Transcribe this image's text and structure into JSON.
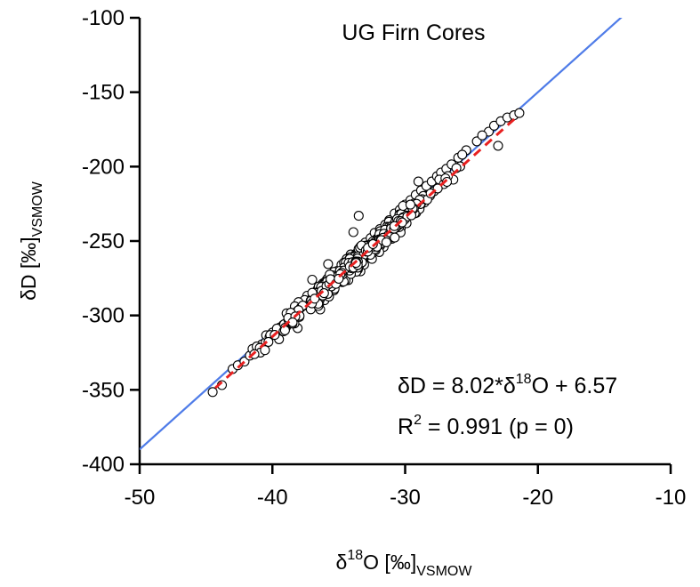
{
  "chart_data": {
    "type": "scatter",
    "title": "UG Firn Cores",
    "xlabel": {
      "delta": "δ",
      "sup": "18",
      "main": "O [‰]",
      "sub": "VSMOW"
    },
    "ylabel": {
      "main": "δD [‰]",
      "sub": "VSMOW"
    },
    "xlim": [
      -50,
      -10
    ],
    "ylim": [
      -400,
      -100
    ],
    "xticks": [
      -50,
      -40,
      -30,
      -20,
      -10
    ],
    "yticks": [
      -100,
      -150,
      -200,
      -250,
      -300,
      -350,
      -400
    ],
    "grid": false,
    "reference_line": {
      "slope": 8,
      "intercept": 10,
      "color": "#4f7ce8"
    },
    "regression": {
      "slope": 8.02,
      "intercept": 6.57,
      "color": "#e82020",
      "style": "dashed",
      "x_range": [
        -44.3,
        -21.6
      ]
    },
    "annotations": {
      "equation": {
        "lhs": "δD = 8.02*δ",
        "sup": "18",
        "rhs": "O + 6.57"
      },
      "r2": {
        "lhs": "R",
        "sup": "2",
        "rhs": " = 0.991 (p = 0)"
      }
    },
    "series": [
      {
        "marker": "open-circle",
        "x_range": [
          -44.5,
          -21.4
        ],
        "n_points": 460,
        "points": [
          [
            -44.5,
            -351.5
          ],
          [
            -43.8,
            -346.8
          ],
          [
            -43.0,
            -336.0
          ],
          [
            -42.6,
            -333.5
          ],
          [
            -42.1,
            -331.0
          ],
          [
            -41.7,
            -327.0
          ],
          [
            -41.5,
            -322.5
          ],
          [
            -41.1,
            -322.0
          ],
          [
            -40.8,
            -319.5
          ],
          [
            -40.5,
            -318.0
          ],
          [
            -40.3,
            -314.5
          ],
          [
            -40.0,
            -311.5
          ],
          [
            -39.6,
            -309.5
          ],
          [
            -39.2,
            -306.5
          ],
          [
            -38.8,
            -301.5
          ],
          [
            -38.4,
            -300.5
          ],
          [
            -38.0,
            -295.0
          ],
          [
            -37.6,
            -291.5
          ],
          [
            -37.3,
            -289.0
          ],
          [
            -37.0,
            -286.5
          ],
          [
            -36.6,
            -282.5
          ],
          [
            -36.2,
            -278.5
          ],
          [
            -35.9,
            -276.0
          ],
          [
            -35.5,
            -273.5
          ],
          [
            -35.1,
            -270.0
          ],
          [
            -34.8,
            -266.0
          ],
          [
            -34.4,
            -262.0
          ],
          [
            -34.1,
            -259.0
          ],
          [
            -33.7,
            -258.5
          ],
          [
            -33.3,
            -256.0
          ],
          [
            -33.0,
            -251.0
          ],
          [
            -32.6,
            -248.0
          ],
          [
            -32.3,
            -244.5
          ],
          [
            -31.9,
            -242.0
          ],
          [
            -31.5,
            -239.0
          ],
          [
            -31.2,
            -236.0
          ],
          [
            -30.8,
            -231.5
          ],
          [
            -30.4,
            -229.0
          ],
          [
            -30.0,
            -225.5
          ],
          [
            -29.6,
            -222.5
          ],
          [
            -29.2,
            -219.0
          ],
          [
            -28.8,
            -216.0
          ],
          [
            -28.4,
            -213.0
          ],
          [
            -28.0,
            -210.0
          ],
          [
            -27.6,
            -206.5
          ],
          [
            -27.3,
            -204.0
          ],
          [
            -26.9,
            -201.5
          ],
          [
            -26.5,
            -198.5
          ],
          [
            -26.0,
            -194.0
          ],
          [
            -25.4,
            -189.0
          ],
          [
            -24.6,
            -183.0
          ],
          [
            -23.7,
            -176.5
          ],
          [
            -23.3,
            -172.5
          ],
          [
            -22.8,
            -169.5
          ],
          [
            -22.3,
            -167.0
          ],
          [
            -21.8,
            -165.5
          ],
          [
            -21.4,
            -164.0
          ],
          [
            -23.0,
            -186.0
          ],
          [
            -24.2,
            -179.0
          ],
          [
            -25.7,
            -192.0
          ],
          [
            -33.5,
            -233.0
          ],
          [
            -33.9,
            -244.0
          ],
          [
            -37.0,
            -276.0
          ],
          [
            -35.8,
            -265.5
          ],
          [
            -36.4,
            -296.0
          ],
          [
            -32.5,
            -262.0
          ],
          [
            -38.1,
            -308.5
          ],
          [
            -39.5,
            -316.0
          ],
          [
            -31.0,
            -248.5
          ],
          [
            -29.0,
            -210.0
          ]
        ]
      }
    ]
  }
}
